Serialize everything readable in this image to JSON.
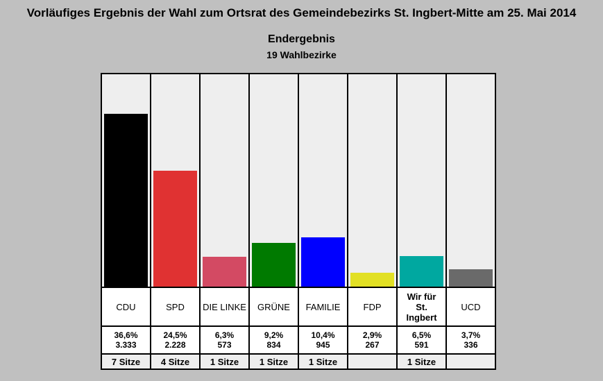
{
  "header": {
    "title": "Vorläufiges Ergebnis der Wahl zum Ortsrat des Gemeindebezirks St. Ingbert-Mitte am 25. Mai 2014",
    "subtitle": "Endergebnis",
    "subsubtitle": "19 Wahlbezirke"
  },
  "chart_data": {
    "type": "bar",
    "categories": [
      "CDU",
      "SPD",
      "DIE LINKE",
      "GRÜNE",
      "FAMILIE",
      "FDP",
      "Wir für St. Ingbert",
      "UCD"
    ],
    "values": [
      36.6,
      24.5,
      6.3,
      9.2,
      10.4,
      2.9,
      6.5,
      3.7
    ],
    "ylim": [
      0,
      45
    ],
    "grid": false,
    "legend": "none",
    "parties": [
      {
        "name": "CDU",
        "percent": 36.6,
        "percent_label": "36,6%",
        "votes": "3.333",
        "seats": "7 Sitze",
        "color": "#000000"
      },
      {
        "name": "SPD",
        "percent": 24.5,
        "percent_label": "24,5%",
        "votes": "2.228",
        "seats": "4 Sitze",
        "color": "#e03232"
      },
      {
        "name": "DIE LINKE",
        "percent": 6.3,
        "percent_label": "6,3%",
        "votes": "573",
        "seats": "1 Sitze",
        "color": "#d34a63"
      },
      {
        "name": "GRÜNE",
        "percent": 9.2,
        "percent_label": "9,2%",
        "votes": "834",
        "seats": "1 Sitze",
        "color": "#007a00"
      },
      {
        "name": "FAMILIE",
        "percent": 10.4,
        "percent_label": "10,4%",
        "votes": "945",
        "seats": "1 Sitze",
        "color": "#0000ff"
      },
      {
        "name": "FDP",
        "percent": 2.9,
        "percent_label": "2,9%",
        "votes": "267",
        "seats": "",
        "color": "#e2e024"
      },
      {
        "name": "Wir für St. Ingbert",
        "percent": 6.5,
        "percent_label": "6,5%",
        "votes": "591",
        "seats": "1 Sitze",
        "color": "#00a8a0"
      },
      {
        "name": "UCD",
        "percent": 3.7,
        "percent_label": "3,7%",
        "votes": "336",
        "seats": "",
        "color": "#6a6a6a"
      }
    ]
  }
}
